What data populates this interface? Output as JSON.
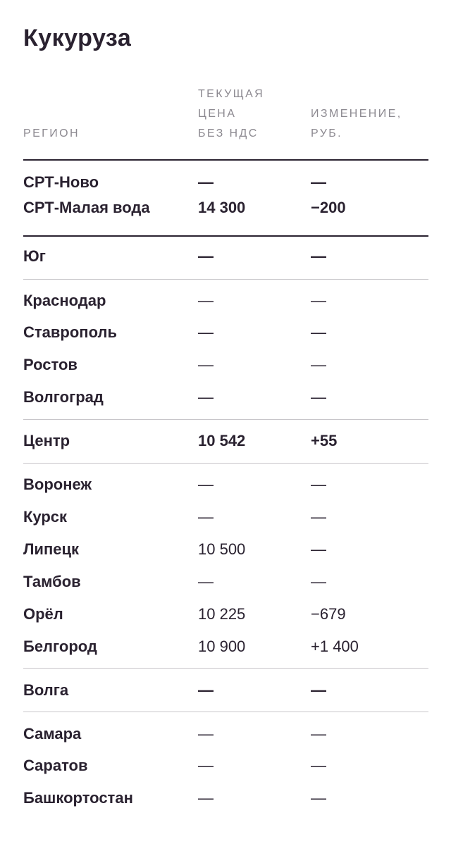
{
  "title": "Кукуруза",
  "colors": {
    "text": "#2a2230",
    "header_text": "#8c8990",
    "negative": "#d6243f",
    "positive": "#1f8a46",
    "rule": "#c8c6ca"
  },
  "columns": {
    "region": "РЕГИОН",
    "price": "ТЕКУЩАЯ\nЦЕНА\nБЕЗ НДС",
    "change": "ИЗМЕНЕНИЕ,\nРУБ."
  },
  "rows": [
    {
      "name": "СРТ-Ново",
      "price": "—",
      "change": "—"
    },
    {
      "name": "СРТ-Малая вода",
      "price": "14 300",
      "change": "−200"
    },
    {
      "name": "Юг",
      "price": "—",
      "change": "—"
    },
    {
      "name": "Краснодар",
      "price": "—",
      "change": "—"
    },
    {
      "name": "Ставрополь",
      "price": "—",
      "change": "—"
    },
    {
      "name": "Ростов",
      "price": "—",
      "change": "—"
    },
    {
      "name": "Волгоград",
      "price": "—",
      "change": "—"
    },
    {
      "name": "Центр",
      "price": "10 542",
      "change": "+55"
    },
    {
      "name": "Воронеж",
      "price": "—",
      "change": "—"
    },
    {
      "name": "Курск",
      "price": "—",
      "change": "—"
    },
    {
      "name": "Липецк",
      "price": "10 500",
      "change": "—"
    },
    {
      "name": "Тамбов",
      "price": "—",
      "change": "—"
    },
    {
      "name": "Орёл",
      "price": "10 225",
      "change": "−679"
    },
    {
      "name": "Белгород",
      "price": "10 900",
      "change": "+1 400"
    },
    {
      "name": "Волга",
      "price": "—",
      "change": "—"
    },
    {
      "name": "Самара",
      "price": "—",
      "change": "—"
    },
    {
      "name": "Саратов",
      "price": "—",
      "change": "—"
    },
    {
      "name": "Башкортостан",
      "price": "—",
      "change": "—"
    }
  ]
}
